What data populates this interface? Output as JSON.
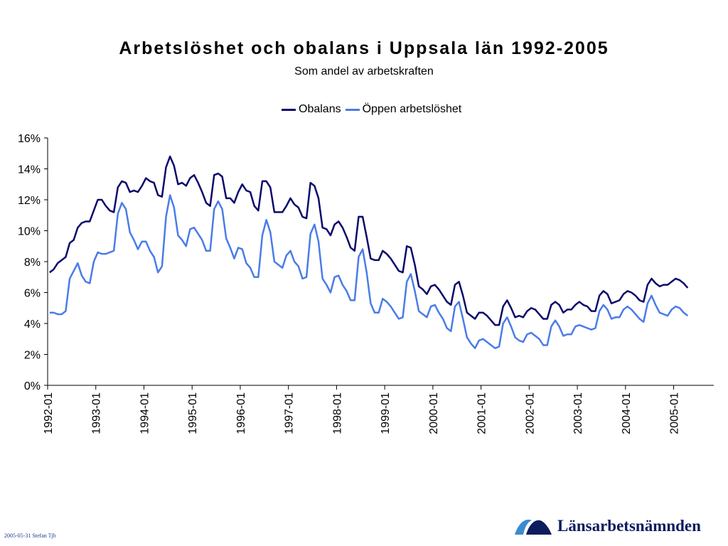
{
  "colors": {
    "obalans": "#0a0a6b",
    "oppen": "#4a7ce8",
    "axis": "#000000",
    "logo_dark": "#0d1c5e",
    "logo_light": "#3a8bd0"
  },
  "footer": {
    "date_text": "2005-05-31 Stefan Tjb",
    "logo_text": "Länsarbetsnämnden",
    "logo_icon": "wave-logo-icon"
  },
  "chart_data": {
    "type": "line",
    "title": "Arbetslöshet och obalans i Uppsala län 1992-2005",
    "subtitle": "Som andel av arbetskraften",
    "legend_position": "top",
    "grid": false,
    "y_ticks": [
      "0%",
      "2%",
      "4%",
      "6%",
      "8%",
      "10%",
      "12%",
      "14%",
      "16%"
    ],
    "ylim": [
      0,
      16
    ],
    "x_start": "1992-01",
    "x_end": "2005-05",
    "x_ticks": [
      "1992-01",
      "1993-01",
      "1994-01",
      "1995-01",
      "1996-01",
      "1997-01",
      "1998-01",
      "1999-01",
      "2000-01",
      "2001-01",
      "2002-01",
      "2003-01",
      "2004-01",
      "2005-01"
    ],
    "series": [
      {
        "name": "Obalans",
        "color_key": "obalans",
        "values": [
          7.3,
          7.5,
          7.9,
          8.1,
          8.3,
          9.2,
          9.4,
          10.2,
          10.5,
          10.6,
          10.6,
          11.3,
          12.0,
          12.0,
          11.6,
          11.3,
          11.2,
          12.8,
          13.2,
          13.1,
          12.5,
          12.6,
          12.5,
          12.9,
          13.4,
          13.2,
          13.1,
          12.3,
          12.2,
          14.1,
          14.8,
          14.2,
          13.0,
          13.1,
          12.9,
          13.4,
          13.6,
          13.1,
          12.5,
          11.8,
          11.6,
          13.6,
          13.7,
          13.5,
          12.1,
          12.1,
          11.8,
          12.5,
          13.0,
          12.6,
          12.5,
          11.6,
          11.3,
          13.2,
          13.2,
          12.8,
          11.2,
          11.2,
          11.2,
          11.6,
          12.1,
          11.7,
          11.5,
          10.9,
          10.8,
          13.1,
          12.9,
          12.1,
          10.2,
          10.1,
          9.7,
          10.4,
          10.6,
          10.2,
          9.6,
          8.9,
          8.7,
          10.9,
          10.9,
          9.6,
          8.2,
          8.1,
          8.1,
          8.7,
          8.5,
          8.2,
          7.8,
          7.4,
          7.3,
          9.0,
          8.9,
          7.8,
          6.4,
          6.2,
          5.9,
          6.4,
          6.5,
          6.2,
          5.8,
          5.4,
          5.2,
          6.5,
          6.7,
          5.8,
          4.7,
          4.5,
          4.3,
          4.7,
          4.7,
          4.5,
          4.2,
          3.9,
          3.9,
          5.1,
          5.5,
          5.0,
          4.4,
          4.5,
          4.4,
          4.8,
          5.0,
          4.9,
          4.6,
          4.3,
          4.3,
          5.2,
          5.4,
          5.2,
          4.7,
          4.9,
          4.9,
          5.2,
          5.4,
          5.2,
          5.1,
          4.8,
          4.8,
          5.8,
          6.1,
          5.9,
          5.3,
          5.4,
          5.5,
          5.9,
          6.1,
          6.0,
          5.8,
          5.5,
          5.4,
          6.5,
          6.9,
          6.6,
          6.4,
          6.5,
          6.5,
          6.7,
          6.9,
          6.8,
          6.6,
          6.3
        ]
      },
      {
        "name": "Öppen arbetslöshet",
        "color_key": "oppen",
        "values": [
          4.7,
          4.7,
          4.6,
          4.6,
          4.8,
          6.9,
          7.4,
          7.9,
          7.1,
          6.7,
          6.6,
          8.0,
          8.6,
          8.5,
          8.5,
          8.6,
          8.7,
          11.1,
          11.8,
          11.4,
          9.9,
          9.4,
          8.8,
          9.3,
          9.3,
          8.7,
          8.3,
          7.3,
          7.7,
          10.9,
          12.3,
          11.5,
          9.7,
          9.4,
          9.0,
          10.1,
          10.2,
          9.8,
          9.4,
          8.7,
          8.7,
          11.4,
          11.9,
          11.4,
          9.5,
          8.9,
          8.2,
          8.9,
          8.8,
          7.9,
          7.6,
          7.0,
          7.0,
          9.7,
          10.7,
          9.9,
          8.0,
          7.8,
          7.6,
          8.4,
          8.7,
          8.0,
          7.7,
          6.9,
          7.0,
          9.8,
          10.4,
          9.3,
          6.9,
          6.5,
          6.0,
          7.0,
          7.1,
          6.5,
          6.1,
          5.5,
          5.5,
          8.3,
          8.8,
          7.3,
          5.3,
          4.7,
          4.7,
          5.6,
          5.4,
          5.1,
          4.7,
          4.3,
          4.4,
          6.7,
          7.2,
          6.1,
          4.8,
          4.6,
          4.4,
          5.1,
          5.2,
          4.7,
          4.3,
          3.7,
          3.5,
          5.1,
          5.4,
          4.3,
          3.1,
          2.7,
          2.4,
          2.9,
          3.0,
          2.8,
          2.6,
          2.4,
          2.5,
          4.0,
          4.4,
          3.8,
          3.1,
          2.9,
          2.8,
          3.3,
          3.4,
          3.2,
          3.0,
          2.6,
          2.6,
          3.8,
          4.2,
          3.8,
          3.2,
          3.3,
          3.3,
          3.8,
          3.9,
          3.8,
          3.7,
          3.6,
          3.7,
          4.8,
          5.2,
          4.9,
          4.3,
          4.4,
          4.4,
          4.9,
          5.1,
          4.9,
          4.6,
          4.3,
          4.1,
          5.3,
          5.8,
          5.2,
          4.7,
          4.6,
          4.5,
          4.9,
          5.1,
          5.0,
          4.7,
          4.5
        ]
      }
    ]
  }
}
